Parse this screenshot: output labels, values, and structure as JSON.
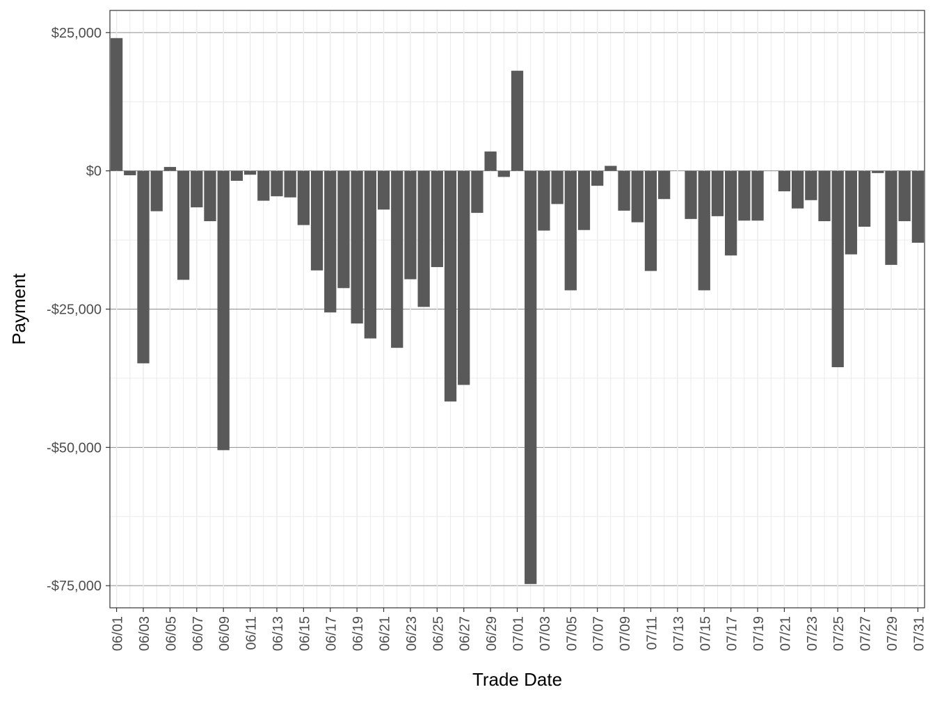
{
  "chart_data": {
    "type": "bar",
    "xlabel": "Trade Date",
    "ylabel": "Payment",
    "ylim": [
      -79000,
      29000
    ],
    "y_ticks": [
      {
        "value": 25000,
        "label": "$25,000"
      },
      {
        "value": 0,
        "label": "$0"
      },
      {
        "value": -25000,
        "label": "-$25,000"
      },
      {
        "value": -50000,
        "label": "-$50,000"
      },
      {
        "value": -75000,
        "label": "-$75,000"
      }
    ],
    "y_minor_values": [
      12500,
      -12500,
      -37500,
      -62500
    ],
    "categories": [
      "06/01",
      "06/02",
      "06/03",
      "06/04",
      "06/05",
      "06/06",
      "06/07",
      "06/08",
      "06/09",
      "06/10",
      "06/11",
      "06/12",
      "06/13",
      "06/14",
      "06/15",
      "06/16",
      "06/17",
      "06/18",
      "06/19",
      "06/20",
      "06/21",
      "06/22",
      "06/23",
      "06/24",
      "06/25",
      "06/26",
      "06/27",
      "06/28",
      "06/29",
      "06/30",
      "07/01",
      "07/02",
      "07/03",
      "07/04",
      "07/05",
      "07/06",
      "07/07",
      "07/08",
      "07/09",
      "07/10",
      "07/11",
      "07/12",
      "07/13",
      "07/14",
      "07/15",
      "07/16",
      "07/17",
      "07/18",
      "07/19",
      "07/20",
      "07/21",
      "07/22",
      "07/23",
      "07/24",
      "07/25",
      "07/26",
      "07/27",
      "07/28",
      "07/29",
      "07/30",
      "07/31"
    ],
    "values": [
      24000,
      -800,
      -34800,
      -7300,
      700,
      -19700,
      -6600,
      -9100,
      -50500,
      -1800,
      -700,
      -5400,
      -4600,
      -4800,
      -9800,
      -18000,
      -25600,
      -21200,
      -27600,
      -30300,
      -7000,
      -32000,
      -19600,
      -24600,
      -17400,
      -41700,
      -38700,
      -7600,
      3500,
      -1100,
      18100,
      -74700,
      -10800,
      -6000,
      -21600,
      -10700,
      -2700,
      900,
      -7200,
      -9300,
      -18100,
      -5100,
      0,
      -8700,
      -21600,
      -8200,
      -15300,
      -9000,
      -9000,
      0,
      -3700,
      -6800,
      -5300,
      -9100,
      -35500,
      -15100,
      -10100,
      -400,
      -17000,
      -9100,
      -13000
    ],
    "x_tick_labels": [
      "06/01",
      "06/03",
      "06/05",
      "06/07",
      "06/09",
      "06/11",
      "06/13",
      "06/15",
      "06/17",
      "06/19",
      "06/21",
      "06/23",
      "06/25",
      "06/27",
      "06/29",
      "07/01",
      "07/03",
      "07/05",
      "07/07",
      "07/09",
      "07/11",
      "07/13",
      "07/15",
      "07/17",
      "07/19",
      "07/21",
      "07/23",
      "07/25",
      "07/27",
      "07/29",
      "07/31"
    ],
    "grid": true,
    "colors": {
      "bar": "#595959",
      "major_grid": "#8c8c8c",
      "minor_grid": "#ebebeb",
      "panel_border": "#333333",
      "tick_label": "#4d4d4d"
    }
  }
}
